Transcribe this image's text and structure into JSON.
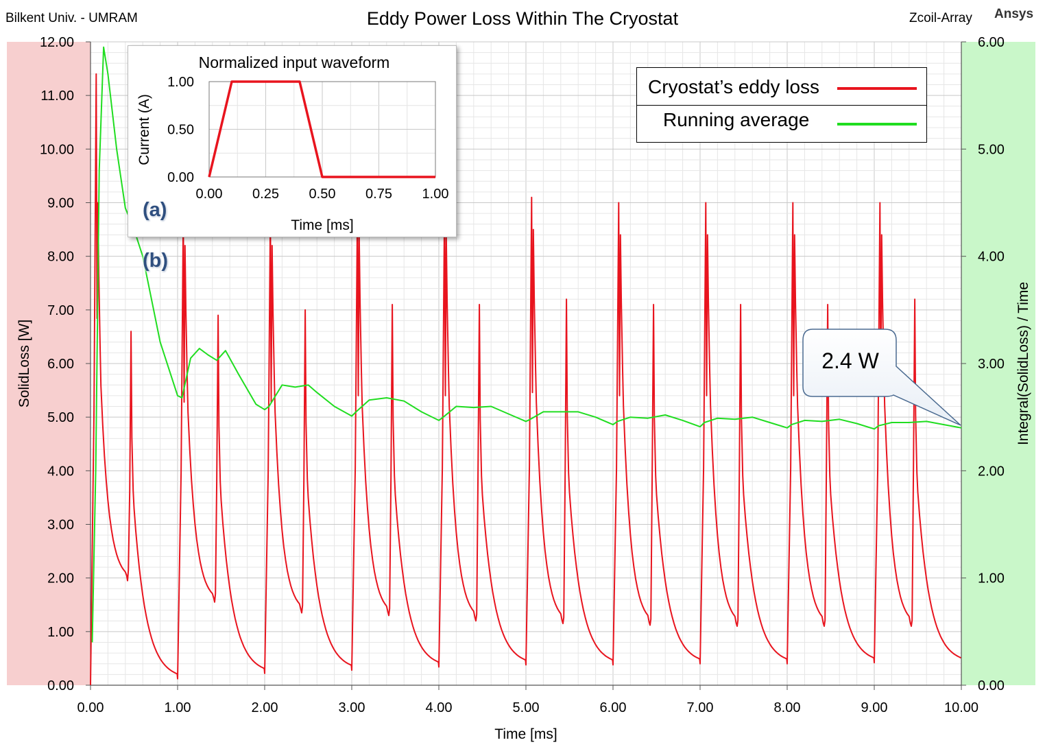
{
  "header": {
    "left_text": "Bilkent Univ. - UMRAM",
    "title": "Eddy Power Loss Within The Cryostat",
    "right_text": "Zcoil-Array",
    "brand": "Ansys"
  },
  "chart_data": [
    {
      "type": "line",
      "title": "Eddy Power Loss Within The Cryostat",
      "xlabel": "Time [ms]",
      "ylabel": "SolidLoss [W]",
      "y2label": "Integral(SolidLoss) / Time",
      "xlim": [
        0,
        10
      ],
      "ylim": [
        0,
        12
      ],
      "y2lim": [
        0,
        6
      ],
      "grid": true,
      "legend_position": "top-right",
      "x_ticks": [
        "0.00",
        "1.00",
        "2.00",
        "3.00",
        "4.00",
        "5.00",
        "6.00",
        "7.00",
        "8.00",
        "9.00",
        "10.00"
      ],
      "y_ticks": [
        "0.00",
        "1.00",
        "2.00",
        "3.00",
        "4.00",
        "5.00",
        "6.00",
        "7.00",
        "8.00",
        "9.00",
        "10.00",
        "11.00",
        "12.00"
      ],
      "y2_ticks": [
        "0.00",
        "1.00",
        "2.00",
        "3.00",
        "4.00",
        "5.00",
        "6.00"
      ],
      "series": [
        {
          "name": "Cryostat’s eddy loss",
          "axis": "left",
          "color": "#e8141e",
          "pulse_period_ms": 1.0,
          "first_pulse": {
            "t_rise": 0.06,
            "peak1": 11.4,
            "peak2": 9.0,
            "dip": 1.95,
            "peak3": 6.6,
            "tail_at_1ms": 0.1
          },
          "pulses": [
            {
              "start": 0,
              "peak1": 11.4,
              "peak2": 9.0,
              "dip": 1.95,
              "peak3": 6.6,
              "end": 0.12
            },
            {
              "start": 1,
              "peak1": 8.8,
              "peak2": 8.2,
              "dip": 1.55,
              "peak3": 6.9,
              "end": 0.22
            },
            {
              "start": 2,
              "peak1": 8.8,
              "peak2": 8.2,
              "dip": 1.35,
              "peak3": 7.0,
              "end": 0.28
            },
            {
              "start": 3,
              "peak1": 9.0,
              "peak2": 8.4,
              "dip": 1.3,
              "peak3": 7.1,
              "end": 0.34
            },
            {
              "start": 4,
              "peak1": 9.0,
              "peak2": 8.4,
              "dip": 1.2,
              "peak3": 7.1,
              "end": 0.38
            },
            {
              "start": 5,
              "peak1": 9.1,
              "peak2": 8.5,
              "dip": 1.15,
              "peak3": 7.2,
              "end": 0.38
            },
            {
              "start": 6,
              "peak1": 9.0,
              "peak2": 8.4,
              "dip": 1.12,
              "peak3": 7.1,
              "end": 0.4
            },
            {
              "start": 7,
              "peak1": 9.0,
              "peak2": 8.4,
              "dip": 1.1,
              "peak3": 7.1,
              "end": 0.4
            },
            {
              "start": 8,
              "peak1": 9.0,
              "peak2": 8.4,
              "dip": 1.1,
              "peak3": 7.1,
              "end": 0.42
            },
            {
              "start": 9,
              "peak1": 9.0,
              "peak2": 8.4,
              "dip": 1.1,
              "peak3": 7.2,
              "end": 0.42
            }
          ]
        },
        {
          "name": "Running average",
          "axis": "right",
          "color": "#20dd20",
          "x": [
            0.02,
            0.06,
            0.1,
            0.15,
            0.2,
            0.3,
            0.4,
            0.5,
            0.6,
            0.7,
            0.8,
            0.9,
            1.0,
            1.05,
            1.15,
            1.25,
            1.35,
            1.45,
            1.55,
            1.7,
            1.9,
            2.0,
            2.05,
            2.2,
            2.35,
            2.5,
            2.6,
            2.8,
            3.0,
            3.05,
            3.2,
            3.4,
            3.6,
            3.8,
            4.0,
            4.05,
            4.2,
            4.4,
            4.6,
            4.8,
            5.0,
            5.05,
            5.2,
            5.4,
            5.6,
            5.8,
            6.0,
            6.05,
            6.2,
            6.4,
            6.6,
            6.8,
            7.0,
            7.05,
            7.2,
            7.4,
            7.6,
            7.8,
            8.0,
            8.05,
            8.2,
            8.4,
            8.6,
            8.8,
            9.0,
            9.05,
            9.2,
            9.4,
            9.6,
            9.8,
            10.0
          ],
          "values": [
            0.4,
            2.0,
            4.8,
            5.95,
            5.7,
            5.0,
            4.45,
            4.25,
            4.0,
            3.6,
            3.2,
            2.95,
            2.7,
            2.68,
            3.05,
            3.14,
            3.08,
            3.03,
            3.12,
            2.9,
            2.62,
            2.57,
            2.6,
            2.8,
            2.78,
            2.8,
            2.73,
            2.6,
            2.51,
            2.55,
            2.66,
            2.68,
            2.65,
            2.55,
            2.47,
            2.5,
            2.6,
            2.59,
            2.6,
            2.53,
            2.46,
            2.48,
            2.55,
            2.55,
            2.55,
            2.5,
            2.43,
            2.46,
            2.5,
            2.49,
            2.52,
            2.47,
            2.41,
            2.45,
            2.49,
            2.48,
            2.5,
            2.45,
            2.4,
            2.43,
            2.47,
            2.46,
            2.48,
            2.44,
            2.39,
            2.42,
            2.45,
            2.45,
            2.46,
            2.43,
            2.4
          ]
        }
      ],
      "annotations": {
        "panel_a": "(a)",
        "panel_b": "(b)",
        "callout": "2.4 W"
      }
    },
    {
      "type": "line",
      "title": "Normalized input waveform",
      "xlabel": "Time [ms]",
      "ylabel": "Current (A)",
      "xlim": [
        0,
        1
      ],
      "ylim": [
        0,
        1
      ],
      "x_ticks": [
        "0.00",
        "0.25",
        "0.50",
        "0.75",
        "1.00"
      ],
      "y_ticks": [
        "0.00",
        "0.50",
        "1.00"
      ],
      "series": [
        {
          "color": "#e8141e",
          "x": [
            0,
            0.1,
            0.4,
            0.5,
            1.0
          ],
          "values": [
            0,
            1,
            1,
            0,
            0
          ]
        }
      ]
    }
  ],
  "colors": {
    "left_axis_band": "#f7cfcf",
    "right_axis_band": "#c9f7c9",
    "grid_major": "#c8c8c8",
    "grid_minor": "#e6e6e6"
  }
}
